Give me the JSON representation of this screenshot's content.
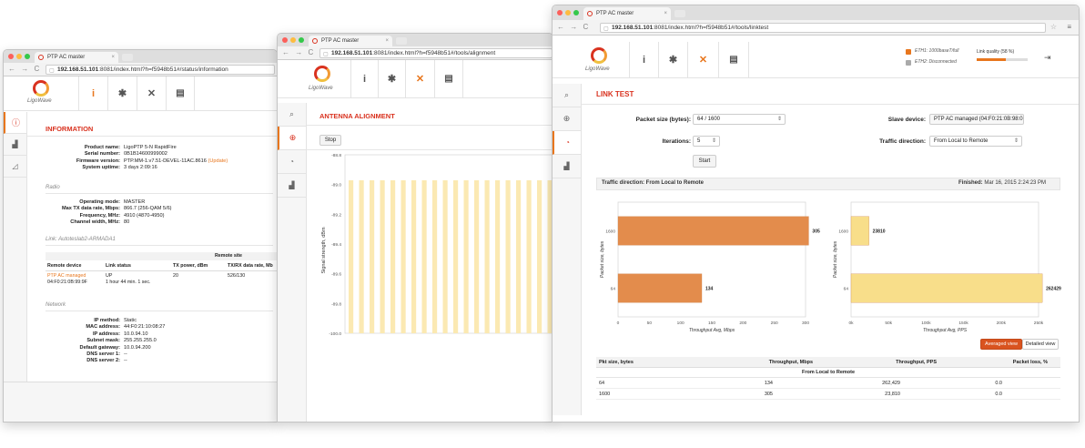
{
  "colors": {
    "accent": "#d9321f",
    "orange": "#e8761d",
    "bar_orange": "#e38c4c",
    "bar_yellow": "#f8de8a"
  },
  "browser": {
    "tab_title": "PTP AC master",
    "url_host": "192.168.51.101",
    "url_status": ":8081/index.html?h=f5948b51#/status/information",
    "url_align": ":8081/index.html?h=f5948b51#/tools/alignment",
    "url_link": ":8081/index.html?h=f5948b51#/tools/linktest"
  },
  "logo": {
    "text": "LigoWave"
  },
  "nav_icons": [
    "info-icon",
    "gear-icon",
    "tools-icon",
    "device-icon"
  ],
  "status_window": {
    "title": "INFORMATION",
    "device": [
      {
        "k": "Product name:",
        "v": "LigoPTP 5-N RapidFire"
      },
      {
        "k": "Serial number:",
        "v": "0B1B14600999002"
      },
      {
        "k": "Firmware version:",
        "v": "PTP.MM-1.v7.51-DEVEL-11AC.8616",
        "extra": "(Update)"
      },
      {
        "k": "System uptime:",
        "v": "3 days 2:09:16"
      }
    ],
    "radio_heading": "Radio",
    "radio": [
      {
        "k": "Operating mode:",
        "v": "MASTER"
      },
      {
        "k": "Max TX data rate, Mbps:",
        "v": "866.7 (256-QAM 5/6)"
      },
      {
        "k": "Frequency, MHz:",
        "v": "4910 (4870-4950)"
      },
      {
        "k": "Channel width, MHz:",
        "v": "80"
      }
    ],
    "link_heading": "Link: Autoteslab2-ARMADA1",
    "remote_site": "Remote site",
    "link_cols": [
      "Remote device",
      "Link status",
      "TX power, dBm",
      "TX/RX data rate, Mb"
    ],
    "link_row": {
      "device": "PTP AC managed",
      "mac": "04:F0:21:0B:99:9F",
      "status": "UP",
      "uptime": "1 hour 44 min. 1 sec.",
      "tx": "20",
      "rate": "526/130"
    },
    "network_heading": "Network",
    "network": [
      {
        "k": "IP method:",
        "v": "Static"
      },
      {
        "k": "MAC address:",
        "v": "44:F0:21:10:08:27"
      },
      {
        "k": "IP address:",
        "v": "10.0.94.10"
      },
      {
        "k": "Subnet mask:",
        "v": "255.255.255.0"
      },
      {
        "k": "Default gateway:",
        "v": "10.0.94.200"
      },
      {
        "k": "DNS server 1:",
        "v": "--"
      },
      {
        "k": "DNS server 2:",
        "v": "--"
      }
    ]
  },
  "align_window": {
    "title": "ANTENNA ALIGNMENT",
    "stop_label": "Stop",
    "ylabel": "Signal strength, dBm",
    "yticks": [
      "-88.8",
      "-89.0",
      "-89.2",
      "-89.4",
      "-89.6",
      "-89.8",
      "-100.0"
    ]
  },
  "link_window": {
    "title": "LINK TEST",
    "eth1": "ETH1: 1000baseT/full",
    "eth2": "ETH2: Disconnected",
    "link_quality": "Link quality (58 %)",
    "link_quality_value": 0.58,
    "packet_size_label": "Packet size (bytes):",
    "packet_size_value": "64 / 1600",
    "iterations_label": "Iterations:",
    "iterations_value": "5",
    "start_label": "Start",
    "slave_label": "Slave device:",
    "slave_value": "PTP AC managed (04:F0:21:0B:98:0",
    "direction_label": "Traffic direction:",
    "direction_value": "From Local to Remote",
    "result_direction": "Traffic direction: From Local to Remote",
    "finished_label": "Finished:",
    "finished_value": "Mar 16, 2015 2:24:23 PM",
    "averaged_view": "Averaged view",
    "detailed_view": "Detailed view",
    "table_cols": [
      "Pkt size, bytes",
      "Throughput, Mbps",
      "Throughput, PPS",
      "Packet loss, %"
    ],
    "table_group": "From Local to Remote",
    "table_rows": [
      [
        "64",
        "134",
        "262,429",
        "0.0"
      ],
      [
        "1600",
        "305",
        "23,810",
        "0.0"
      ]
    ]
  },
  "chart_data": [
    {
      "type": "bar",
      "orientation": "horizontal",
      "categories": [
        "1600",
        "64"
      ],
      "values": [
        305,
        134
      ],
      "xlabel": "Throughput Avg, Mbps",
      "ylabel": "Packet size, bytes",
      "xlim": [
        0,
        300
      ],
      "xticks": [
        "0",
        "50",
        "100",
        "150",
        "200",
        "250",
        "300"
      ],
      "color": "#e38c4c"
    },
    {
      "type": "bar",
      "orientation": "horizontal",
      "categories": [
        "1600",
        "64"
      ],
      "values": [
        23810,
        262429
      ],
      "xlabel": "Throughput Avg, PPS",
      "ylabel": "Packet size, bytes",
      "xlim": [
        0,
        250000
      ],
      "xticks": [
        "0k",
        "50k",
        "100k",
        "150k",
        "200k",
        "250k"
      ],
      "color": "#f8de8a"
    },
    {
      "type": "bar",
      "title": "",
      "ylabel": "Signal strength, dBm",
      "ylim": [
        -100.0,
        -88.8
      ],
      "bar_count": 20,
      "color": "#fbe9b2"
    }
  ]
}
